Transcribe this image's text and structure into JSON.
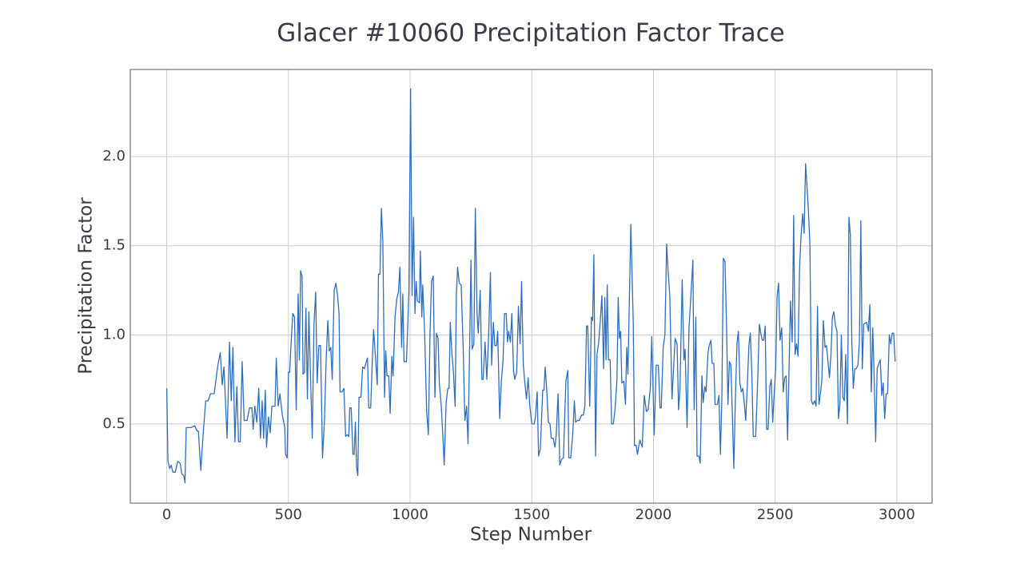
{
  "chart_data": {
    "type": "line",
    "title": "Glacer #10060 Precipitation Factor Trace",
    "x_label": "Step Number",
    "y_label": "Precipitation Factor",
    "color": "#2f6dbd",
    "grid": true,
    "xlim": [
      -149.75,
      3144.75
    ],
    "ylim": [
      0.056,
      2.489
    ],
    "xticks": [
      0,
      500,
      1000,
      1500,
      2000,
      2500,
      3000
    ],
    "yticks": [
      0.5,
      {
        "value": 1,
        "label": "1.0"
      },
      1.5,
      {
        "value": 2,
        "label": "2.0"
      }
    ],
    "x": [
      0,
      5,
      12,
      18,
      25,
      35,
      45,
      55,
      62,
      70,
      75,
      80,
      100,
      115,
      125,
      130,
      140,
      150,
      160,
      170,
      180,
      195,
      210,
      220,
      228,
      235,
      248,
      258,
      265,
      272,
      280,
      288,
      295,
      302,
      310,
      318,
      330,
      340,
      350,
      355,
      362,
      370,
      378,
      385,
      392,
      398,
      405,
      410,
      418,
      425,
      432,
      445,
      450,
      458,
      465,
      475,
      485,
      488,
      495,
      500,
      505,
      512,
      518,
      525,
      532,
      540,
      545,
      550,
      556,
      560,
      566,
      572,
      578,
      584,
      590,
      598,
      605,
      612,
      618,
      625,
      632,
      640,
      648,
      655,
      662,
      668,
      674,
      680,
      688,
      695,
      702,
      708,
      712,
      720,
      728,
      735,
      742,
      748,
      752,
      758,
      765,
      770,
      775,
      780,
      785,
      790,
      798,
      805,
      812,
      818,
      825,
      830,
      838,
      845,
      850,
      858,
      865,
      870,
      876,
      882,
      888,
      895,
      900,
      905,
      912,
      918,
      925,
      930,
      938,
      945,
      952,
      958,
      965,
      970,
      975,
      985,
      995,
      1002,
      1008,
      1014,
      1020,
      1025,
      1030,
      1038,
      1042,
      1048,
      1052,
      1060,
      1068,
      1075,
      1082,
      1088,
      1095,
      1102,
      1108,
      1115,
      1120,
      1128,
      1135,
      1140,
      1148,
      1155,
      1160,
      1165,
      1172,
      1178,
      1185,
      1190,
      1195,
      1202,
      1210,
      1218,
      1225,
      1232,
      1238,
      1245,
      1250,
      1255,
      1262,
      1268,
      1275,
      1280,
      1288,
      1295,
      1300,
      1308,
      1315,
      1322,
      1330,
      1335,
      1342,
      1348,
      1355,
      1360,
      1368,
      1375,
      1382,
      1388,
      1395,
      1400,
      1405,
      1412,
      1418,
      1425,
      1430,
      1438,
      1445,
      1452,
      1458,
      1465,
      1470,
      1478,
      1485,
      1492,
      1500,
      1510,
      1515,
      1522,
      1528,
      1535,
      1545,
      1550,
      1555,
      1562,
      1568,
      1575,
      1580,
      1588,
      1595,
      1600,
      1608,
      1615,
      1622,
      1630,
      1640,
      1648,
      1652,
      1660,
      1668,
      1675,
      1680,
      1688,
      1695,
      1705,
      1712,
      1718,
      1725,
      1730,
      1738,
      1745,
      1750,
      1755,
      1762,
      1768,
      1775,
      1782,
      1788,
      1795,
      1800,
      1805,
      1810,
      1815,
      1822,
      1828,
      1835,
      1842,
      1850,
      1855,
      1860,
      1865,
      1870,
      1878,
      1885,
      1890,
      1895,
      1907,
      1917,
      1922,
      1929,
      1934,
      1944,
      1954,
      1962,
      1971,
      1978,
      1987,
      1993,
      2003,
      2011,
      2020,
      2027,
      2032,
      2040,
      2047,
      2054,
      2060,
      2067,
      2076,
      2081,
      2089,
      2097,
      2103,
      2109,
      2118,
      2125,
      2130,
      2138,
      2146,
      2152,
      2162,
      2167,
      2174,
      2179,
      2187,
      2192,
      2199,
      2204,
      2211,
      2216,
      2224,
      2229,
      2236,
      2241,
      2248,
      2253,
      2263,
      2269,
      2275,
      2281,
      2287,
      2294,
      2300,
      2306,
      2312,
      2318,
      2324,
      2330,
      2336,
      2343,
      2349,
      2355,
      2361,
      2367,
      2373,
      2379,
      2386,
      2392,
      2398,
      2404,
      2410,
      2420,
      2428,
      2435,
      2441,
      2447,
      2453,
      2459,
      2465,
      2471,
      2478,
      2484,
      2490,
      2496,
      2502,
      2508,
      2514,
      2520,
      2527,
      2533,
      2539,
      2545,
      2551,
      2557,
      2563,
      2570,
      2576,
      2582,
      2588,
      2594,
      2600,
      2606,
      2613,
      2619,
      2625,
      2631,
      2637,
      2643,
      2649,
      2655,
      2662,
      2668,
      2674,
      2680,
      2686,
      2692,
      2698,
      2705,
      2711,
      2717,
      2723,
      2729,
      2735,
      2741,
      2748,
      2754,
      2760,
      2766,
      2772,
      2778,
      2784,
      2790,
      2797,
      2803,
      2809,
      2815,
      2821,
      2827,
      2833,
      2840,
      2846,
      2852,
      2858,
      2864,
      2876,
      2883,
      2889,
      2895,
      2901,
      2907,
      2913,
      2919,
      2926,
      2932,
      2938,
      2944,
      2950,
      2956,
      2962,
      2969,
      2975,
      2981,
      2987,
      2993
    ],
    "values": [
      0.7,
      0.29,
      0.25,
      0.27,
      0.23,
      0.23,
      0.29,
      0.28,
      0.22,
      0.21,
      0.17,
      0.48,
      0.48,
      0.49,
      0.46,
      0.46,
      0.24,
      0.45,
      0.63,
      0.63,
      0.67,
      0.67,
      0.83,
      0.9,
      0.72,
      0.82,
      0.42,
      0.96,
      0.63,
      0.93,
      0.4,
      0.71,
      0.4,
      0.4,
      0.85,
      0.52,
      0.52,
      0.59,
      0.59,
      0.47,
      0.6,
      0.51,
      0.7,
      0.42,
      0.63,
      0.42,
      0.69,
      0.37,
      0.54,
      0.45,
      0.6,
      0.6,
      0.87,
      0.6,
      0.67,
      0.55,
      0.48,
      0.33,
      0.31,
      0.79,
      0.79,
      0.98,
      1.12,
      1.1,
      0.58,
      1.23,
      0.86,
      1.36,
      1.33,
      0.78,
      0.79,
      1.15,
      0.64,
      1.13,
      0.8,
      0.42,
      1.06,
      1.24,
      0.73,
      0.94,
      0.94,
      0.31,
      0.52,
      0.86,
      1.08,
      0.91,
      0.93,
      0.75,
      1.25,
      1.29,
      1.22,
      1.12,
      0.68,
      0.68,
      0.7,
      0.43,
      0.44,
      0.43,
      0.59,
      0.59,
      0.33,
      0.33,
      0.51,
      0.26,
      0.21,
      0.65,
      0.65,
      0.82,
      0.81,
      0.84,
      0.87,
      0.59,
      0.59,
      0.87,
      1.03,
      0.87,
      0.72,
      1.34,
      1.34,
      1.71,
      1.52,
      0.65,
      0.91,
      0.77,
      0.77,
      0.56,
      0.88,
      0.77,
      1.1,
      1.2,
      1.24,
      1.38,
      0.93,
      1.23,
      0.85,
      0.85,
      1.24,
      2.38,
      1.22,
      1.66,
      1.12,
      1.3,
      1.19,
      1.18,
      1.47,
      1.1,
      1.28,
      1.0,
      0.57,
      0.44,
      1.02,
      1.3,
      1.33,
      0.65,
      1.01,
      0.98,
      0.73,
      0.6,
      0.42,
      0.27,
      0.62,
      0.7,
      0.7,
      1.07,
      0.89,
      0.79,
      0.6,
      1.22,
      1.38,
      1.29,
      1.28,
      0.93,
      0.52,
      0.6,
      0.39,
      0.97,
      1.42,
      0.92,
      0.95,
      1.71,
      1.12,
      1.01,
      1.25,
      0.75,
      0.75,
      0.96,
      0.75,
      0.97,
      1.35,
      0.83,
      1.07,
      0.94,
      0.94,
      1.02,
      0.53,
      0.74,
      0.86,
      1.12,
      1.12,
      0.96,
      1.02,
      0.96,
      1.12,
      0.8,
      0.75,
      0.79,
      1.16,
      0.95,
      1.3,
      0.84,
      0.75,
      0.64,
      0.76,
      0.6,
      0.5,
      0.5,
      0.54,
      0.68,
      0.32,
      0.36,
      0.69,
      0.69,
      0.82,
      0.68,
      0.51,
      0.5,
      0.42,
      0.42,
      0.37,
      0.43,
      0.67,
      0.27,
      0.3,
      0.31,
      0.74,
      0.8,
      0.31,
      0.31,
      0.44,
      0.63,
      0.51,
      0.52,
      0.52,
      0.55,
      0.55,
      0.6,
      1.05,
      1.05,
      0.6,
      1.1,
      1.08,
      1.45,
      0.32,
      0.89,
      0.96,
      1.09,
      1.22,
      0.81,
      1.21,
      0.86,
      1.28,
      0.86,
      0.86,
      0.5,
      0.5,
      0.58,
      0.75,
      1.21,
      0.98,
      1.02,
      0.73,
      0.74,
      0.61,
      0.93,
      0.78,
      1.62,
      1.06,
      0.38,
      0.38,
      0.33,
      0.41,
      0.37,
      0.66,
      0.57,
      0.58,
      0.7,
      0.99,
      0.44,
      0.83,
      0.83,
      0.59,
      0.59,
      0.93,
      1.0,
      1.51,
      1.36,
      1.22,
      0.64,
      0.77,
      0.98,
      0.95,
      0.58,
      0.7,
      1.31,
      0.86,
      0.92,
      0.48,
      1.04,
      1.18,
      1.42,
      0.58,
      1.1,
      0.32,
      0.32,
      0.28,
      0.77,
      0.62,
      0.71,
      0.68,
      0.9,
      0.94,
      0.97,
      0.84,
      0.84,
      0.61,
      0.61,
      0.66,
      0.33,
      0.65,
      1.43,
      1.41,
      1.06,
      0.61,
      0.85,
      0.83,
      0.56,
      0.25,
      0.61,
      0.95,
      1.02,
      0.73,
      0.68,
      0.7,
      0.62,
      0.52,
      0.73,
      0.94,
      1.01,
      0.79,
      0.43,
      0.43,
      0.74,
      1.06,
      1.01,
      0.97,
      0.97,
      1.05,
      0.47,
      0.47,
      0.71,
      0.75,
      0.51,
      0.67,
      0.81,
      1.22,
      1.29,
      0.97,
      1.04,
      0.68,
      0.76,
      0.77,
      0.41,
      0.81,
      1.19,
      0.96,
      1.67,
      0.89,
      0.95,
      0.88,
      1.36,
      1.55,
      1.68,
      1.57,
      1.96,
      1.83,
      1.69,
      1.49,
      0.63,
      0.61,
      0.63,
      0.6,
      1.16,
      0.61,
      0.67,
      0.75,
      1.08,
      0.93,
      0.94,
      0.85,
      0.76,
      0.88,
      1.1,
      1.13,
      1.05,
      1.02,
      0.53,
      0.61,
      1.0,
      0.65,
      0.63,
      0.89,
      0.5,
      1.66,
      1.56,
      0.96,
      0.7,
      0.81,
      0.81,
      0.83,
      0.96,
      1.64,
      0.81,
      1.06,
      1.07,
      1.02,
      1.17,
      0.68,
      1.04,
      0.75,
      0.4,
      0.81,
      0.84,
      0.86,
      0.66,
      0.73,
      0.53,
      0.67,
      0.67,
      1.0,
      0.95,
      1.01,
      1.01,
      0.85
    ]
  }
}
